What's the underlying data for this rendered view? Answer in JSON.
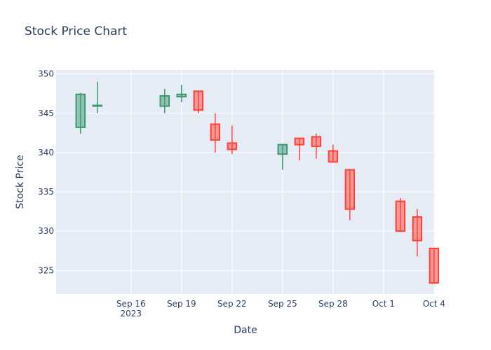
{
  "chart_data": {
    "type": "candlestick",
    "title": "Stock Price Chart",
    "xlabel": "Date",
    "ylabel": "Stock Price",
    "ylim": [
      322,
      350.5
    ],
    "xlim": [
      "2023-09-12",
      "2023-10-04"
    ],
    "x_tick_labels": [
      "Sep 16\n2023",
      "Sep 19",
      "Sep 22",
      "Sep 25",
      "Sep 28",
      "Oct 1",
      "Oct 4"
    ],
    "y_ticks": [
      325,
      330,
      335,
      340,
      345,
      350
    ],
    "colors": {
      "increasing": "#3d9970",
      "increasing_fill": "rgba(61,153,112,0.5)",
      "decreasing": "#ff4136",
      "decreasing_fill": "rgba(255,65,54,0.5)",
      "plot_bg": "#e5ecf6",
      "grid": "#ffffff"
    },
    "candles": [
      {
        "date": "2023-09-13",
        "open": 343.2,
        "high": 347.6,
        "low": 342.4,
        "close": 347.4
      },
      {
        "date": "2023-09-14",
        "open": 346.0,
        "high": 349.0,
        "low": 345.0,
        "close": 346.0
      },
      {
        "date": "2023-09-18",
        "open": 345.9,
        "high": 348.1,
        "low": 345.0,
        "close": 347.2
      },
      {
        "date": "2023-09-19",
        "open": 347.1,
        "high": 348.6,
        "low": 346.4,
        "close": 347.4
      },
      {
        "date": "2023-09-20",
        "open": 347.8,
        "high": 347.8,
        "low": 345.0,
        "close": 345.4
      },
      {
        "date": "2023-09-21",
        "open": 343.6,
        "high": 345.0,
        "low": 340.0,
        "close": 341.6
      },
      {
        "date": "2023-09-22",
        "open": 341.2,
        "high": 343.4,
        "low": 339.8,
        "close": 340.4
      },
      {
        "date": "2023-09-25",
        "open": 339.8,
        "high": 341.0,
        "low": 337.8,
        "close": 341.0
      },
      {
        "date": "2023-09-26",
        "open": 341.8,
        "high": 341.8,
        "low": 339.0,
        "close": 341.0
      },
      {
        "date": "2023-09-27",
        "open": 342.0,
        "high": 342.4,
        "low": 339.2,
        "close": 340.8
      },
      {
        "date": "2023-09-28",
        "open": 340.2,
        "high": 341.0,
        "low": 338.8,
        "close": 338.8
      },
      {
        "date": "2023-09-29",
        "open": 337.8,
        "high": 337.8,
        "low": 331.4,
        "close": 332.8
      },
      {
        "date": "2023-10-02",
        "open": 333.8,
        "high": 334.2,
        "low": 330.0,
        "close": 330.0
      },
      {
        "date": "2023-10-03",
        "open": 331.8,
        "high": 332.8,
        "low": 326.8,
        "close": 328.8
      },
      {
        "date": "2023-10-04",
        "open": 327.8,
        "high": 327.8,
        "low": 323.4,
        "close": 323.4
      }
    ]
  }
}
